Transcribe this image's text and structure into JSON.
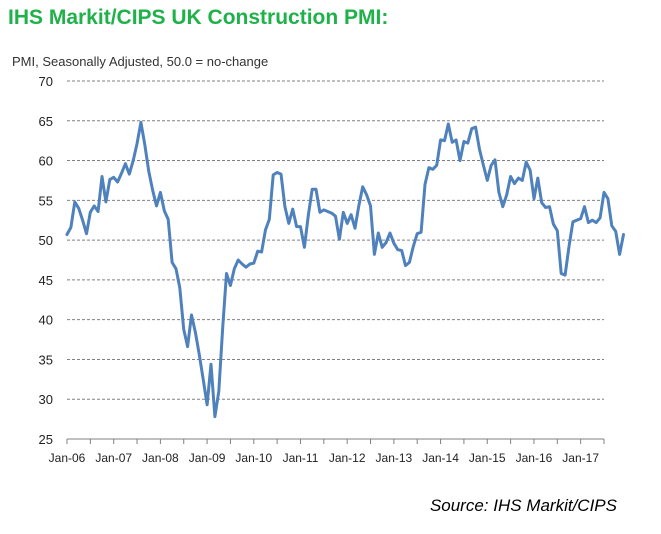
{
  "header": {
    "title": "IHS Markit/CIPS UK Construction PMI:",
    "subtitle": "PMI, Seasonally Adjusted, 50.0 = no-change"
  },
  "footer": {
    "source": "Source: IHS Markit/CIPS"
  },
  "colors": {
    "title": "#1fb14a",
    "line": "#4f81bd",
    "grid": "#808080"
  },
  "chart_data": {
    "type": "line",
    "title": "IHS Markit/CIPS UK Construction PMI:",
    "subtitle": "PMI, Seasonally Adjusted, 50.0 = no-change",
    "xlabel": "",
    "ylabel": "",
    "ylim": [
      25,
      70
    ],
    "yticks": [
      25,
      30,
      35,
      40,
      45,
      50,
      55,
      60,
      65,
      70
    ],
    "x_tick_labels": [
      "Jan-06",
      "Jan-07",
      "Jan-08",
      "Jan-09",
      "Jan-10",
      "Jan-11",
      "Jan-12",
      "Jan-13",
      "Jan-14",
      "Jan-15",
      "Jan-16",
      "Jan-17"
    ],
    "x_start": "Jan-06",
    "x_end": "Jul-17",
    "grid": "horizontal dashed",
    "legend": "none",
    "series": [
      {
        "values": [
          50.7,
          51.6,
          54.8,
          54.0,
          52.5,
          50.8,
          53.5,
          54.3,
          53.6,
          58.0,
          54.8,
          57.6,
          57.9,
          57.3,
          58.4,
          59.6,
          58.3,
          60.0,
          62.1,
          64.8,
          62.0,
          58.7,
          56.3,
          54.3,
          56.0,
          53.7,
          52.6,
          47.2,
          46.4,
          44.0,
          38.8,
          36.6,
          40.6,
          38.4,
          35.6,
          32.5,
          29.3,
          34.4,
          27.8,
          31.0,
          39.0,
          45.8,
          44.3,
          46.4,
          47.5,
          47.0,
          46.6,
          47.0,
          47.1,
          48.6,
          48.5,
          51.3,
          52.6,
          58.2,
          58.5,
          58.3,
          54.2,
          52.1,
          53.9,
          51.7,
          51.7,
          49.1,
          53.1,
          56.4,
          56.4,
          53.5,
          53.8,
          53.6,
          53.4,
          53.0,
          50.1,
          53.5,
          52.1,
          53.2,
          51.5,
          54.3,
          56.7,
          55.7,
          54.3,
          48.2,
          50.9,
          49.1,
          49.7,
          50.9,
          49.6,
          48.8,
          48.7,
          46.8,
          47.2,
          49.2,
          50.8,
          51.0,
          57.0,
          59.1,
          58.9,
          59.4,
          62.6,
          62.5,
          64.6,
          62.3,
          62.6,
          60.0,
          62.4,
          62.2,
          64.0,
          64.2,
          61.4,
          59.4,
          57.5,
          59.4,
          60.1,
          56.0,
          54.2,
          55.7,
          58.0,
          57.1,
          57.8,
          57.5,
          59.8,
          58.8,
          55.2,
          57.8,
          54.7,
          54.1,
          54.2,
          52.0,
          51.2,
          45.8,
          45.6,
          49.2,
          52.3,
          52.5,
          52.7,
          54.2,
          52.2,
          52.5,
          52.2,
          52.8,
          56.0,
          55.2,
          51.8,
          51.1,
          48.2,
          50.7
        ]
      }
    ]
  }
}
